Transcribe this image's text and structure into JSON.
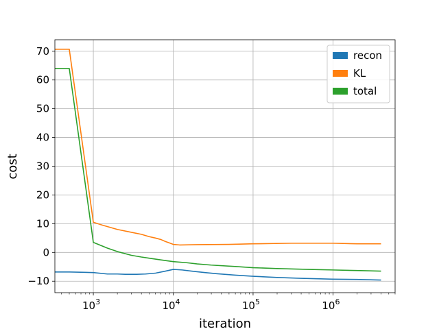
{
  "chart_data": {
    "type": "line",
    "title": "",
    "xlabel": "iteration",
    "ylabel": "cost",
    "xscale": "log",
    "xlim": [
      330,
      6000000
    ],
    "ylim": [
      -14,
      74
    ],
    "grid": true,
    "legend_position": "top-right",
    "x_ticks": [
      {
        "value": 1000,
        "base": "10",
        "exp": "3"
      },
      {
        "value": 10000,
        "base": "10",
        "exp": "4"
      },
      {
        "value": 100000,
        "base": "10",
        "exp": "5"
      },
      {
        "value": 1000000,
        "base": "10",
        "exp": "6"
      }
    ],
    "y_ticks": [
      -10,
      0,
      10,
      20,
      30,
      40,
      50,
      60,
      70
    ],
    "y_tick_labels": [
      "−10",
      "0",
      "10",
      "20",
      "30",
      "40",
      "50",
      "60",
      "70"
    ],
    "series": [
      {
        "name": "recon",
        "color": "#1f77b4",
        "points": [
          [
            330,
            -6.8
          ],
          [
            500,
            -6.8
          ],
          [
            700,
            -6.9
          ],
          [
            1000,
            -7.0
          ],
          [
            1500,
            -7.5
          ],
          [
            2000,
            -7.5
          ],
          [
            2500,
            -7.6
          ],
          [
            3500,
            -7.6
          ],
          [
            4500,
            -7.5
          ],
          [
            6000,
            -7.2
          ],
          [
            8000,
            -6.5
          ],
          [
            10000,
            -5.9
          ],
          [
            13000,
            -6.1
          ],
          [
            17000,
            -6.5
          ],
          [
            25000,
            -7.0
          ],
          [
            35000,
            -7.4
          ],
          [
            60000,
            -7.9
          ],
          [
            100000,
            -8.3
          ],
          [
            200000,
            -8.7
          ],
          [
            400000,
            -9.0
          ],
          [
            1000000,
            -9.3
          ],
          [
            2000000,
            -9.4
          ],
          [
            4000000,
            -9.6
          ]
        ]
      },
      {
        "name": "KL",
        "color": "#ff7f0e",
        "points": [
          [
            330,
            70.7
          ],
          [
            500,
            70.7
          ],
          [
            1000,
            10.5
          ],
          [
            1300,
            9.5
          ],
          [
            2000,
            8.0
          ],
          [
            3000,
            7.0
          ],
          [
            4000,
            6.3
          ],
          [
            5000,
            5.5
          ],
          [
            6000,
            5.0
          ],
          [
            7000,
            4.5
          ],
          [
            8000,
            3.8
          ],
          [
            9000,
            3.3
          ],
          [
            10000,
            2.8
          ],
          [
            12000,
            2.6
          ],
          [
            20000,
            2.7
          ],
          [
            50000,
            2.8
          ],
          [
            100000,
            3.0
          ],
          [
            300000,
            3.2
          ],
          [
            1000000,
            3.2
          ],
          [
            2000000,
            3.0
          ],
          [
            4000000,
            3.0
          ]
        ]
      },
      {
        "name": "total",
        "color": "#2ca02c",
        "points": [
          [
            330,
            64.0
          ],
          [
            500,
            64.0
          ],
          [
            1000,
            3.5
          ],
          [
            1500,
            1.5
          ],
          [
            2000,
            0.3
          ],
          [
            3000,
            -1.0
          ],
          [
            4000,
            -1.6
          ],
          [
            5000,
            -2.0
          ],
          [
            7000,
            -2.6
          ],
          [
            10000,
            -3.2
          ],
          [
            15000,
            -3.6
          ],
          [
            20000,
            -4.0
          ],
          [
            30000,
            -4.4
          ],
          [
            60000,
            -4.9
          ],
          [
            100000,
            -5.3
          ],
          [
            200000,
            -5.6
          ],
          [
            500000,
            -5.9
          ],
          [
            1000000,
            -6.1
          ],
          [
            2000000,
            -6.3
          ],
          [
            4000000,
            -6.5
          ]
        ]
      }
    ]
  }
}
